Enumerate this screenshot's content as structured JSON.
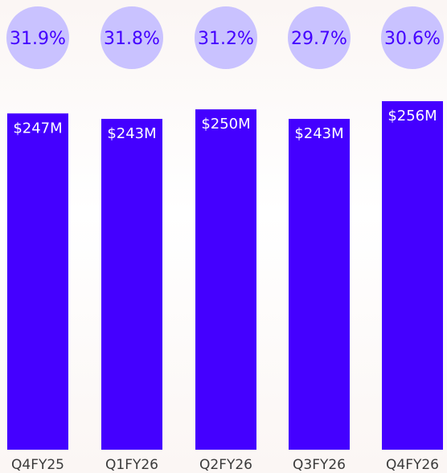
{
  "chart_data": {
    "type": "bar",
    "categories": [
      "Q4FY25",
      "Q1FY26",
      "Q2FY26",
      "Q3FY26",
      "Q4FY26"
    ],
    "values": [
      247,
      243,
      250,
      243,
      256
    ],
    "value_labels": [
      "$247M",
      "$243M",
      "$250M",
      "$243M",
      "$256M"
    ],
    "percent_labels": [
      "31.9%",
      "31.8%",
      "31.2%",
      "29.7%",
      "30.6%"
    ],
    "ylim": [
      0,
      256
    ],
    "title": "",
    "xlabel": "",
    "ylabel": "",
    "grid": false,
    "colors": {
      "bar": "#4400ff",
      "bar_label": "#ffffff",
      "bubble": "#c9c2ff",
      "bubble_text": "#4400ff",
      "category_text": "#3a3a3a"
    }
  }
}
